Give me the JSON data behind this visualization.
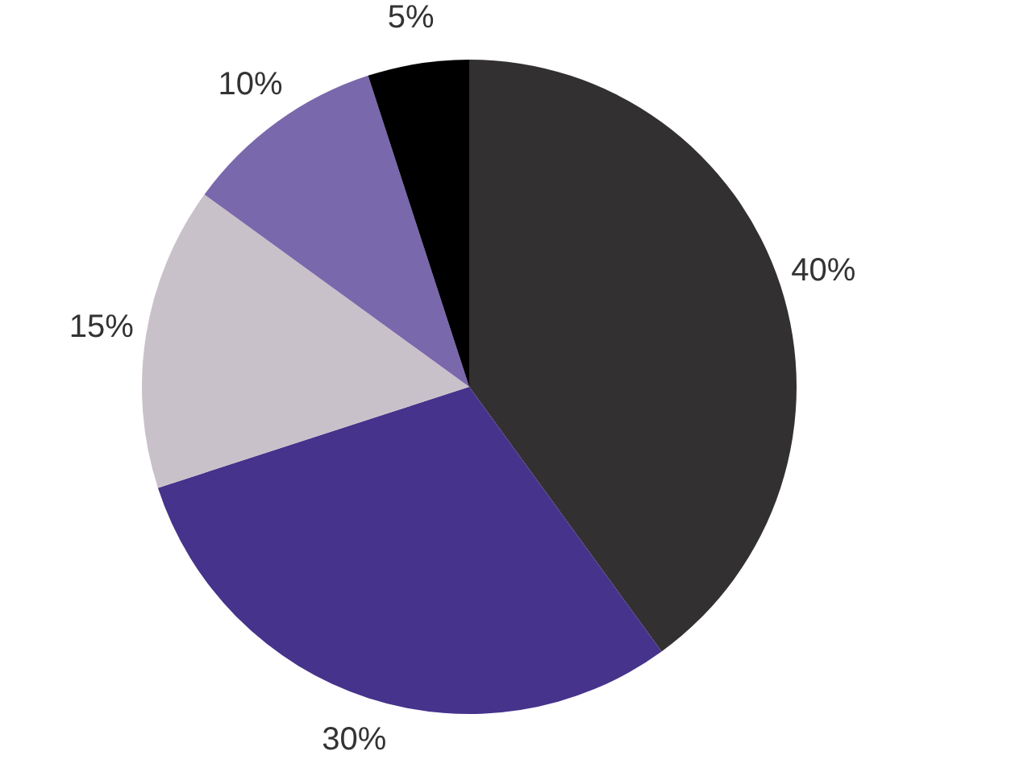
{
  "chart_data": {
    "type": "pie",
    "categories": [
      null,
      null,
      null,
      null,
      null
    ],
    "values": [
      40,
      30,
      15,
      10,
      5
    ],
    "colors": [
      "#333031",
      "#46338c",
      "#c9c1c9",
      "#7a68ad",
      "#000000"
    ],
    "value_labels": [
      "40%",
      "30%",
      "15%",
      "10%",
      "5%"
    ]
  }
}
